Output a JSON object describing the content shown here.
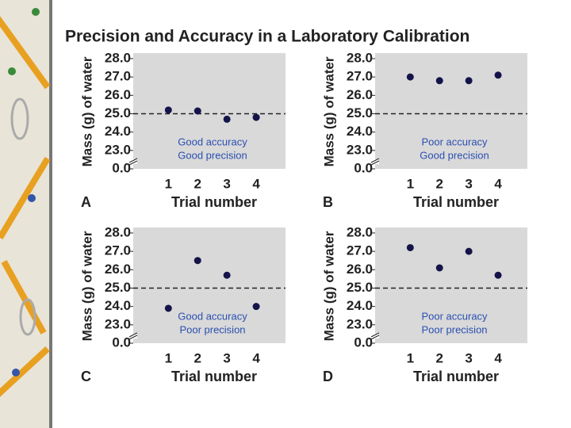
{
  "title": "Precision and Accuracy in a Laboratory Calibration",
  "chart_data": [
    {
      "type": "scatter",
      "panel": "A",
      "x_label": "Trial number",
      "y_label": "Mass (g) of water",
      "annotations": [
        "Good accuracy",
        "Good precision"
      ],
      "x": [
        1,
        2,
        3,
        4
      ],
      "values": [
        25.2,
        25.15,
        24.7,
        24.8
      ],
      "color": "#14144a",
      "xlim": [
        -0.2,
        5
      ],
      "xticks": [
        1,
        2,
        3,
        4
      ],
      "ylim": [
        22,
        28.3
      ],
      "axis_break": true,
      "reference_line": 25,
      "yticks": [
        {
          "value": 0,
          "label": "0.0"
        },
        {
          "value": 23,
          "label": "23.0"
        },
        {
          "value": 24,
          "label": "24.0"
        },
        {
          "value": 25,
          "label": "25.0"
        },
        {
          "value": 26,
          "label": "26.0"
        },
        {
          "value": 27,
          "label": "27.0"
        },
        {
          "value": 28,
          "label": "28.0"
        }
      ]
    },
    {
      "type": "scatter",
      "panel": "B",
      "x_label": "Trial number",
      "y_label": "Mass (g) of water",
      "annotations": [
        "Poor accuracy",
        "Good precision"
      ],
      "x": [
        1,
        2,
        3,
        4
      ],
      "values": [
        27.0,
        26.8,
        26.8,
        27.1
      ],
      "color": "#14144a",
      "xlim": [
        -0.2,
        5
      ],
      "xticks": [
        1,
        2,
        3,
        4
      ],
      "ylim": [
        22,
        28.3
      ],
      "axis_break": true,
      "reference_line": 25,
      "yticks": [
        {
          "value": 0,
          "label": "0.0"
        },
        {
          "value": 23,
          "label": "23.0"
        },
        {
          "value": 24,
          "label": "24.0"
        },
        {
          "value": 25,
          "label": "25.0"
        },
        {
          "value": 26,
          "label": "26.0"
        },
        {
          "value": 27,
          "label": "27.0"
        },
        {
          "value": 28,
          "label": "28.0"
        }
      ]
    },
    {
      "type": "scatter",
      "panel": "C",
      "x_label": "Trial number",
      "y_label": "Mass (g) of water",
      "annotations": [
        "Good accuracy",
        "Poor precision"
      ],
      "x": [
        1,
        2,
        3,
        4
      ],
      "values": [
        23.9,
        26.5,
        25.7,
        24.0
      ],
      "color": "#14144a",
      "xlim": [
        -0.2,
        5
      ],
      "xticks": [
        1,
        2,
        3,
        4
      ],
      "ylim": [
        22,
        28.3
      ],
      "axis_break": true,
      "reference_line": 25,
      "yticks": [
        {
          "value": 0,
          "label": "0.0"
        },
        {
          "value": 23,
          "label": "23.0"
        },
        {
          "value": 24,
          "label": "24.0"
        },
        {
          "value": 25,
          "label": "25.0"
        },
        {
          "value": 26,
          "label": "26.0"
        },
        {
          "value": 27,
          "label": "27.0"
        },
        {
          "value": 28,
          "label": "28.0"
        }
      ]
    },
    {
      "type": "scatter",
      "panel": "D",
      "x_label": "Trial number",
      "y_label": "Mass (g) of water",
      "annotations": [
        "Poor accuracy",
        "Poor precision"
      ],
      "x": [
        1,
        2,
        3,
        4
      ],
      "values": [
        27.2,
        26.1,
        27.0,
        25.7
      ],
      "color": "#14144a",
      "xlim": [
        -0.2,
        5
      ],
      "xticks": [
        1,
        2,
        3,
        4
      ],
      "ylim": [
        22,
        28.3
      ],
      "axis_break": true,
      "reference_line": 25,
      "yticks": [
        {
          "value": 0,
          "label": "0.0"
        },
        {
          "value": 23,
          "label": "23.0"
        },
        {
          "value": 24,
          "label": "24.0"
        },
        {
          "value": 25,
          "label": "25.0"
        },
        {
          "value": 26,
          "label": "26.0"
        },
        {
          "value": 27,
          "label": "27.0"
        },
        {
          "value": 28,
          "label": "28.0"
        }
      ]
    }
  ]
}
